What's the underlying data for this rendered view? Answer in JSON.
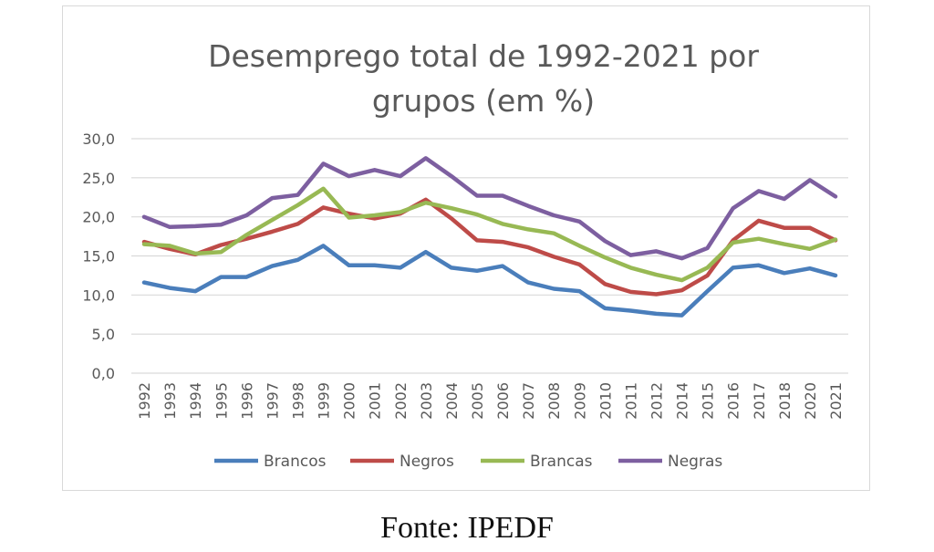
{
  "chart_data": {
    "type": "line",
    "title_lines": [
      "Desemprego total de 1992-2021 por",
      "grupos (em %)"
    ],
    "categories": [
      "1992",
      "1993",
      "1994",
      "1995",
      "1996",
      "1997",
      "1998",
      "1999",
      "2000",
      "2001",
      "2002",
      "2003",
      "2004",
      "2005",
      "2006",
      "2007",
      "2008",
      "2009",
      "2010",
      "2011",
      "2012",
      "2014",
      "2015",
      "2016",
      "2017",
      "2018",
      "2020",
      "2021"
    ],
    "ylim": [
      0,
      30
    ],
    "yticks": [
      "0,0",
      "5,0",
      "10,0",
      "15,0",
      "20,0",
      "25,0",
      "30,0"
    ],
    "ytick_values": [
      0,
      5,
      10,
      15,
      20,
      25,
      30
    ],
    "grid": true,
    "legend_position": "bottom",
    "series": [
      {
        "name": "Brancos",
        "color": "#4a7ebb",
        "values": [
          11.6,
          10.9,
          10.5,
          12.3,
          12.3,
          13.7,
          14.5,
          16.3,
          13.8,
          13.8,
          13.5,
          15.5,
          13.5,
          13.1,
          13.7,
          11.6,
          10.8,
          10.5,
          8.3,
          8.0,
          7.6,
          7.4,
          10.5,
          13.5,
          13.8,
          12.8,
          13.4,
          12.5
        ]
      },
      {
        "name": "Negros",
        "color": "#be4b48",
        "values": [
          16.8,
          15.9,
          15.2,
          16.4,
          17.2,
          18.1,
          19.1,
          21.2,
          20.4,
          19.8,
          20.4,
          22.2,
          19.8,
          17.0,
          16.8,
          16.1,
          14.9,
          13.9,
          11.4,
          10.4,
          10.1,
          10.6,
          12.5,
          17.0,
          19.5,
          18.6,
          18.6,
          17.0
        ]
      },
      {
        "name": "Brancas",
        "color": "#98b954",
        "values": [
          16.5,
          16.3,
          15.3,
          15.5,
          17.7,
          19.6,
          21.5,
          23.6,
          19.9,
          20.2,
          20.6,
          21.8,
          21.1,
          20.3,
          19.1,
          18.4,
          17.9,
          16.3,
          14.8,
          13.5,
          12.6,
          11.9,
          13.5,
          16.7,
          17.2,
          16.5,
          15.9,
          17.1
        ]
      },
      {
        "name": "Negras",
        "color": "#7d5fa0",
        "values": [
          20.0,
          18.7,
          18.8,
          19.0,
          20.2,
          22.4,
          22.8,
          26.8,
          25.2,
          26.0,
          25.2,
          27.5,
          25.2,
          22.7,
          22.7,
          21.4,
          20.2,
          19.4,
          16.9,
          15.1,
          15.6,
          14.7,
          16.0,
          21.1,
          23.3,
          22.3,
          24.7,
          22.6
        ]
      }
    ]
  },
  "source_caption": "Fonte: IPEDF"
}
